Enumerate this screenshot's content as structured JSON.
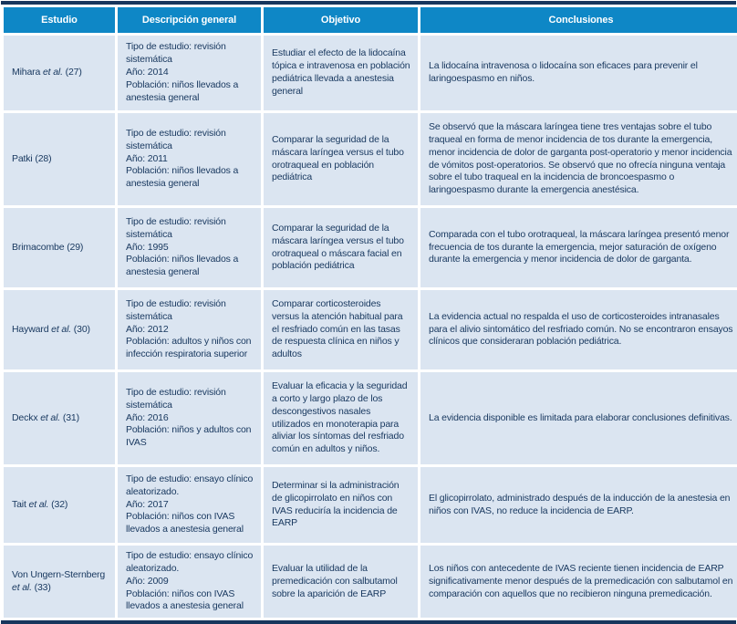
{
  "colors": {
    "header_bg": "#0e87c6",
    "header_text": "#ffffff",
    "cell_bg": "#dbe5f1",
    "body_text": "#17375e",
    "outer_border": "#17365d"
  },
  "table": {
    "columns": [
      "Estudio",
      "Descripción general",
      "Objetivo",
      "Conclusiones"
    ],
    "rows": [
      {
        "estudio": [
          {
            "t": "Mihara "
          },
          {
            "t": "et al.",
            "i": true
          },
          {
            "t": " (27)"
          }
        ],
        "descripcion": [
          "Tipo de estudio: revisión sistemática",
          "Año: 2014",
          "Población: niños llevados a anestesia general"
        ],
        "objetivo": "Estudiar el efecto de la lidocaína tópica e intravenosa en población pediátrica llevada a anestesia general",
        "conclusiones": "La lidocaína intravenosa o lidocaína son eficaces para prevenir el laringoespasmo en niños."
      },
      {
        "estudio": [
          {
            "t": "Patki (28)"
          }
        ],
        "descripcion": [
          "Tipo de estudio: revisión sistemática",
          "Año: 2011",
          "Población: niños llevados a anestesia general"
        ],
        "objetivo": "Comparar la seguridad de la máscara laríngea versus el tubo orotraqueal en población pediátrica",
        "conclusiones": "Se observó que la máscara laríngea tiene tres ventajas sobre el tubo traqueal en forma de menor incidencia de tos durante la emergencia, menor incidencia de dolor de garganta post-operatorio y menor incidencia de vómitos post-operatorios. Se observó que no ofrecía ninguna ventaja sobre el tubo traqueal en la incidencia de broncoespasmo o laringoespasmo durante la emergencia anestésica."
      },
      {
        "estudio": [
          {
            "t": "Brimacombe (29)"
          }
        ],
        "descripcion": [
          "Tipo de estudio: revisión sistemática",
          "Año: 1995",
          "Población: niños llevados a anestesia general"
        ],
        "objetivo": "Comparar la seguridad de la máscara laríngea versus el tubo orotraqueal o máscara facial en población pediátrica",
        "conclusiones": "Comparada con el tubo orotraqueal, la máscara laríngea presentó menor frecuencia de tos durante la emergencia, mejor saturación de oxígeno durante la emergencia y menor incidencia de dolor de garganta."
      },
      {
        "estudio": [
          {
            "t": "Hayward "
          },
          {
            "t": "et al.",
            "i": true
          },
          {
            "t": " (30)"
          }
        ],
        "descripcion": [
          "Tipo de estudio: revisión sistemática",
          "Año: 2012",
          "Población: adultos y niños con infección respiratoria superior"
        ],
        "objetivo": "Comparar corticosteroides versus la atención habitual para el resfriado común en las tasas de respuesta clínica en niños y adultos",
        "conclusiones": "La evidencia actual no respalda el uso de corticosteroides intranasales para el alivio sintomático del resfriado común. No se encontraron ensayos clínicos que consideraran población pediátrica."
      },
      {
        "estudio": [
          {
            "t": "Deckx "
          },
          {
            "t": "et al.",
            "i": true
          },
          {
            "t": " (31)"
          }
        ],
        "descripcion": [
          "Tipo de estudio: revisión sistemática",
          "Año: 2016",
          "Población: niños y adultos con IVAS"
        ],
        "objetivo": "Evaluar la eficacia y la seguridad a corto y largo plazo de los descongestivos nasales utilizados en monoterapia para aliviar los síntomas del resfriado común en adultos y niños.",
        "conclusiones": "La evidencia disponible es limitada para elaborar conclusiones definitivas."
      },
      {
        "estudio": [
          {
            "t": "Tait "
          },
          {
            "t": "et al.",
            "i": true
          },
          {
            "t": " (32)"
          }
        ],
        "descripcion": [
          "Tipo de estudio: ensayo clínico aleatorizado.",
          "Año: 2017",
          "Población: niños con IVAS llevados a anestesia general"
        ],
        "objetivo": "Determinar si la administración de glicopirrolato en niños con IVAS reduciría la incidencia de EARP",
        "conclusiones": "El glicopirrolato, administrado después de la inducción de la anestesia en niños con IVAS, no reduce la incidencia de EARP."
      },
      {
        "estudio": [
          {
            "t": "Von Ungern-Sternberg "
          },
          {
            "t": "et al.",
            "i": true
          },
          {
            "t": " (33)"
          }
        ],
        "descripcion": [
          "Tipo de estudio: ensayo clínico aleatorizado.",
          "Año: 2009",
          "Población: niños con IVAS llevados a anestesia general"
        ],
        "objetivo": "Evaluar la utilidad de la premedicación con salbutamol sobre la aparición de EARP",
        "conclusiones": "Los niños con antecedente de IVAS reciente tienen incidencia de EARP significativamente menor después de la premedicación con salbutamol en comparación con aquellos que no recibieron ninguna premedicación."
      }
    ]
  }
}
